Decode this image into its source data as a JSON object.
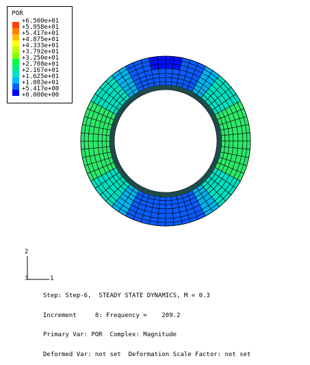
{
  "legend": {
    "title": "POR",
    "entries": [
      {
        "label": "+6.500e+01",
        "color": "#ff0000"
      },
      {
        "label": "+5.958e+01",
        "color": "#ff4000"
      },
      {
        "label": "+5.417e+01",
        "color": "#ff8000"
      },
      {
        "label": "+4.875e+01",
        "color": "#ffbf00"
      },
      {
        "label": "+4.333e+01",
        "color": "#ffff00"
      },
      {
        "label": "+3.792e+01",
        "color": "#bfff00"
      },
      {
        "label": "+3.250e+01",
        "color": "#80ff00"
      },
      {
        "label": "+2.708e+01",
        "color": "#00ff40"
      },
      {
        "label": "+2.167e+01",
        "color": "#00ef80"
      },
      {
        "label": "+1.625e+01",
        "color": "#00e5c8"
      },
      {
        "label": "+1.083e+01",
        "color": "#00b8ff"
      },
      {
        "label": "+5.417e+00",
        "color": "#0060ff"
      },
      {
        "label": "+0.000e+00",
        "color": "#0000ff"
      }
    ]
  },
  "triad": {
    "y": "2",
    "z": "3",
    "x": "1"
  },
  "info": {
    "line1": "Step: Step-6,  STEADY STATE DYNAMICS, M = 0.3",
    "line2": "Increment     8: Frequency =    209.2",
    "line3": "Primary Var: POR  Complex: Magnitude",
    "line4": "Deformed Var: not set  Deformation Scale Factor: not set"
  },
  "colors": {
    "green": "#2ee86a",
    "cyan": "#00e0c0",
    "lightblue": "#00b4f0",
    "blue": "#0a5cff",
    "darkblue": "#0010ff",
    "inner_ring": "#1e4a4a",
    "mesh": "#000000"
  }
}
